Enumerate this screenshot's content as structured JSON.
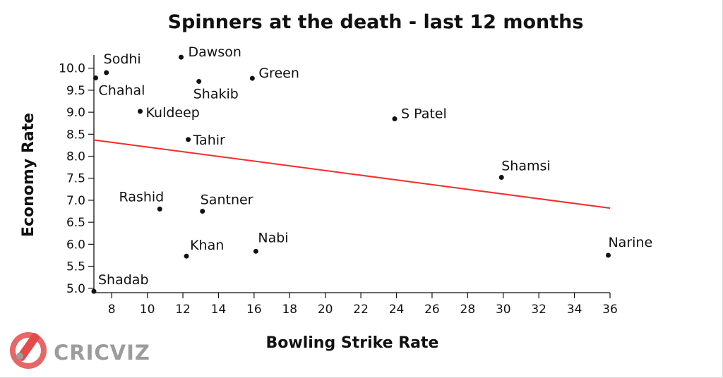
{
  "chart_data": {
    "type": "scatter",
    "title": "Spinners at the death - last 12 months",
    "xlabel": "Bowling Strike Rate",
    "ylabel": "Economy Rate",
    "xlim": [
      7,
      36
    ],
    "ylim": [
      4.9,
      10.3
    ],
    "x_ticks": [
      8,
      10,
      12,
      14,
      16,
      18,
      20,
      22,
      24,
      26,
      28,
      30,
      32,
      34,
      36
    ],
    "y_ticks": [
      "5.0",
      "5.5",
      "6.0",
      "6.5",
      "7.0",
      "7.5",
      "8.0",
      "8.5",
      "9.0",
      "9.5",
      "10.0"
    ],
    "grid": false,
    "points": [
      {
        "name": "Sodhi",
        "x": 7.7,
        "y": 9.9
      },
      {
        "name": "Chahal",
        "x": 7.1,
        "y": 9.78
      },
      {
        "name": "Dawson",
        "x": 11.9,
        "y": 10.25
      },
      {
        "name": "Shakib",
        "x": 12.9,
        "y": 9.7
      },
      {
        "name": "Green",
        "x": 15.9,
        "y": 9.77
      },
      {
        "name": "Kuldeep",
        "x": 9.6,
        "y": 9.02
      },
      {
        "name": "S Patel",
        "x": 23.9,
        "y": 8.85
      },
      {
        "name": "Tahir",
        "x": 12.3,
        "y": 8.38
      },
      {
        "name": "Shamsi",
        "x": 29.9,
        "y": 7.52
      },
      {
        "name": "Rashid",
        "x": 10.7,
        "y": 6.8
      },
      {
        "name": "Santner",
        "x": 13.1,
        "y": 6.75
      },
      {
        "name": "Khan",
        "x": 12.2,
        "y": 5.73
      },
      {
        "name": "Nabi",
        "x": 16.1,
        "y": 5.84
      },
      {
        "name": "Narine",
        "x": 35.9,
        "y": 5.75
      },
      {
        "name": "Shadab",
        "x": 7.0,
        "y": 4.93
      }
    ],
    "trendline": {
      "x1": 7,
      "y1": 8.37,
      "x2": 36,
      "y2": 6.82,
      "color": "#ff2a2a"
    }
  },
  "logo": {
    "text": "CRICVIZ",
    "accent": "#e34b4b"
  }
}
